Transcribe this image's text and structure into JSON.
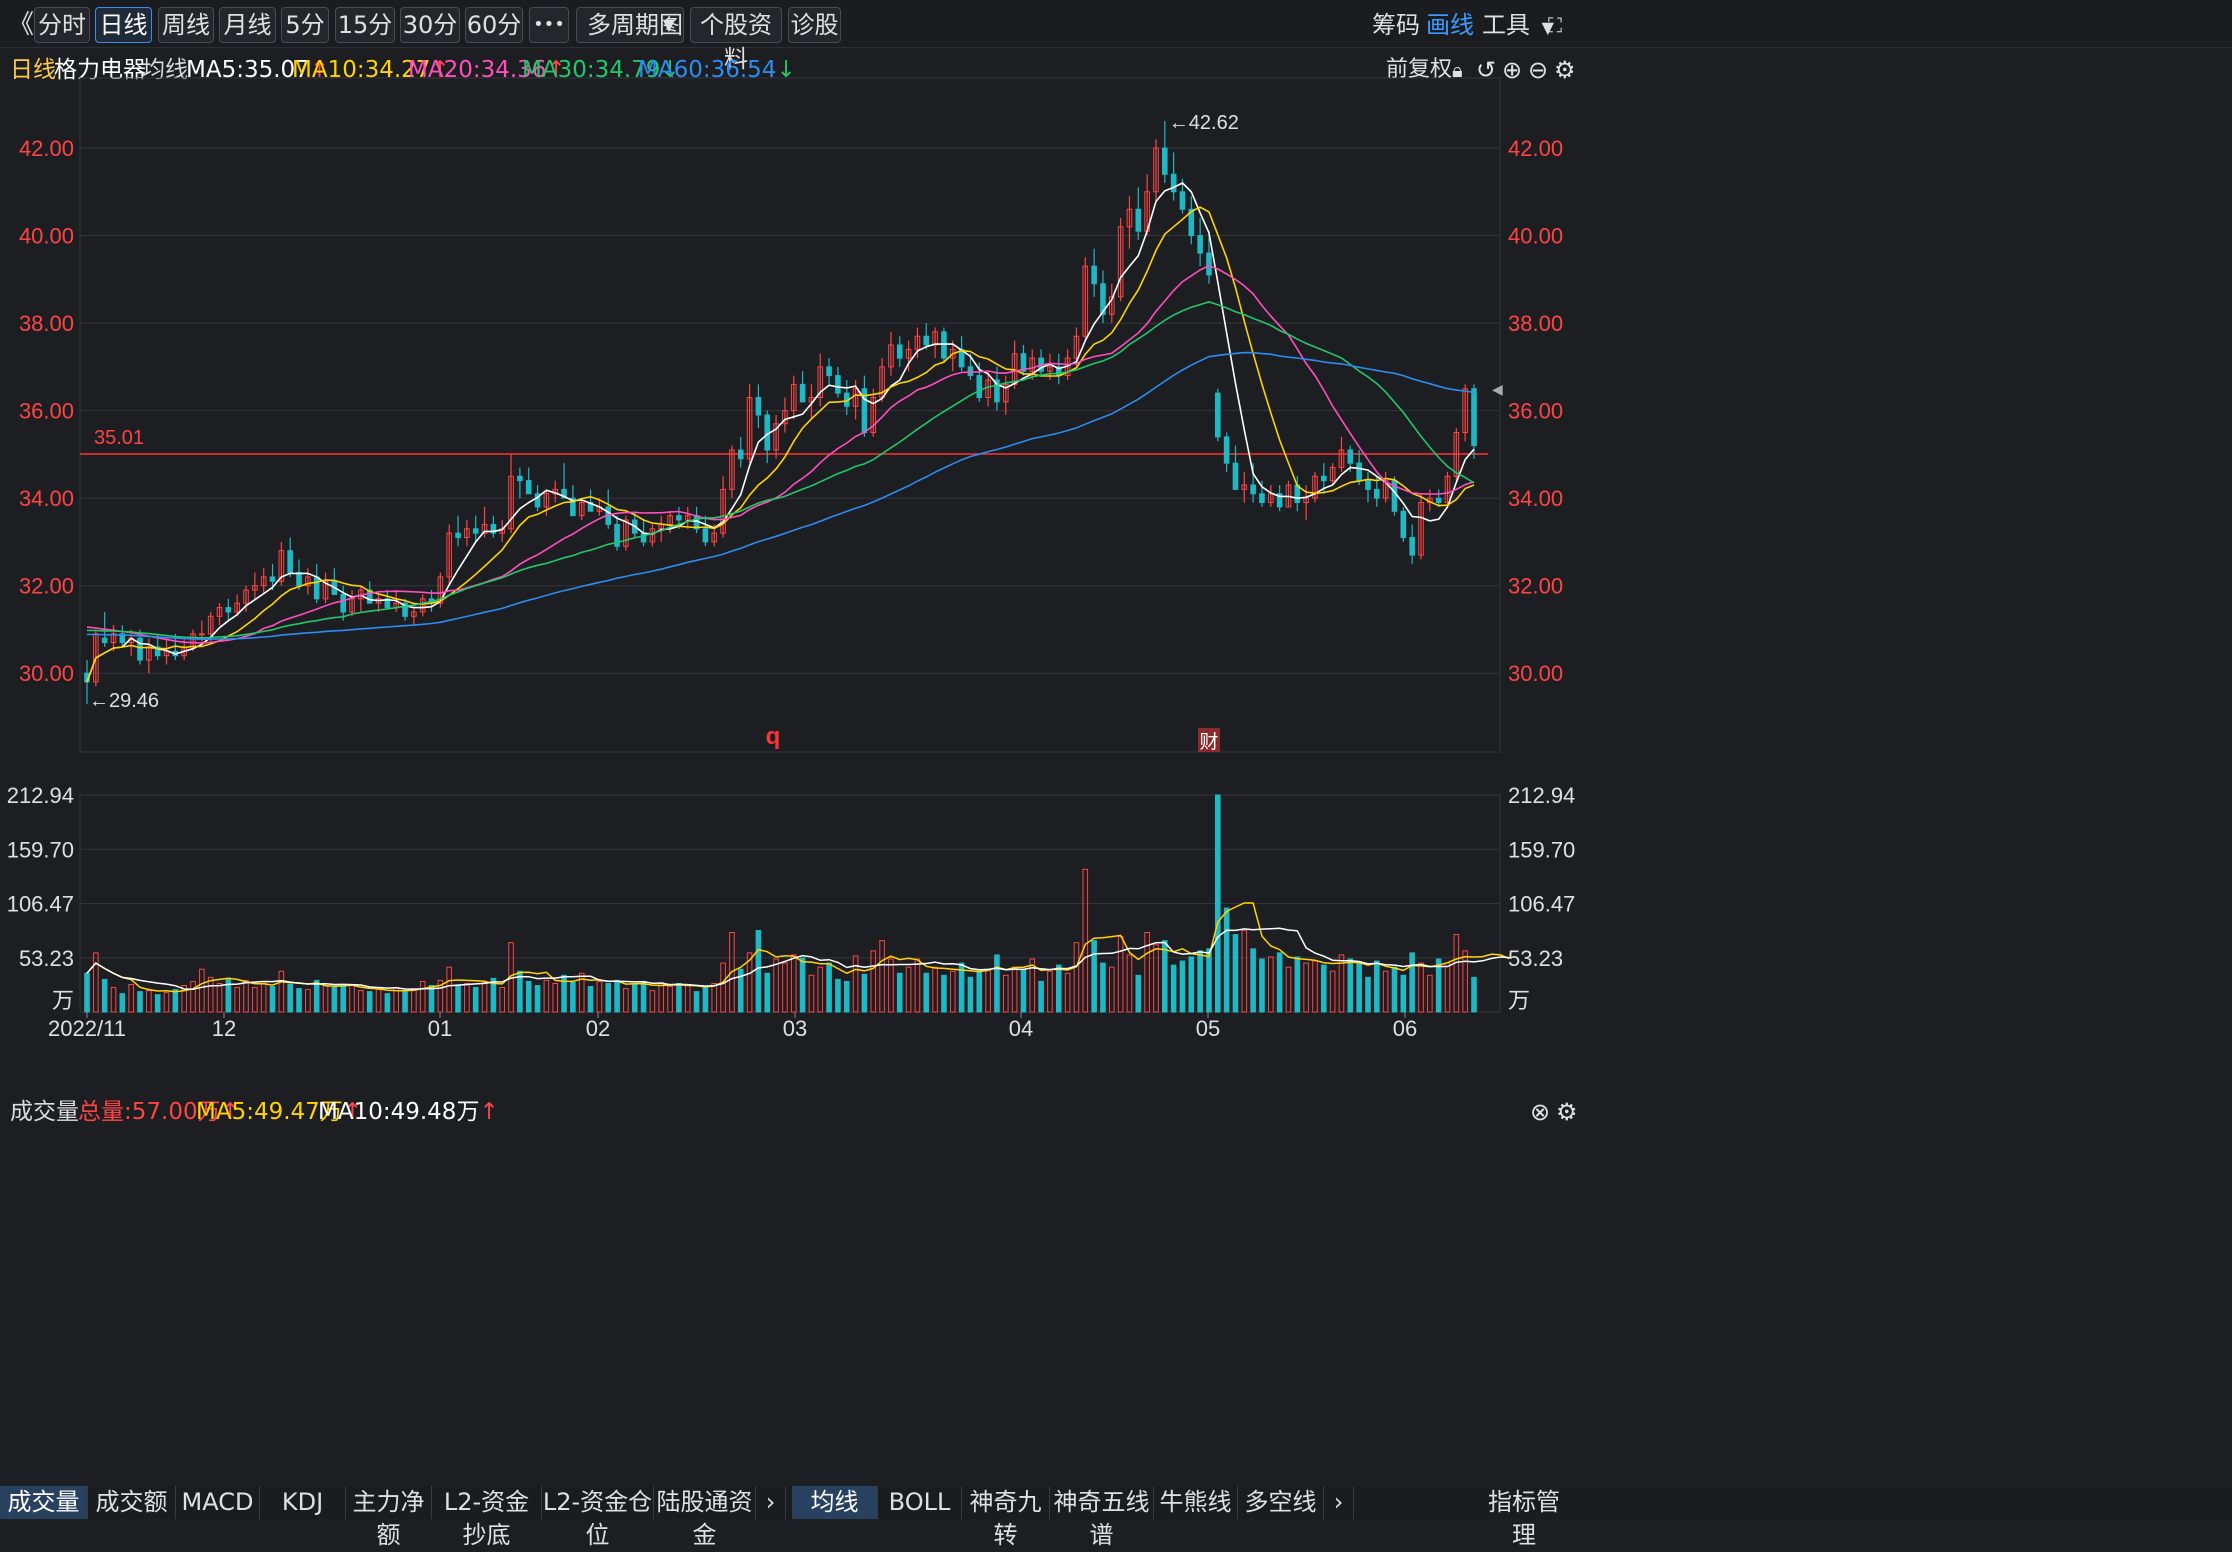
{
  "toolbar": {
    "collapse": "《",
    "periods": [
      "分时",
      "日线",
      "周线",
      "月线",
      "5分",
      "15分",
      "30分",
      "60分"
    ],
    "active_period": "日线",
    "more": "•••",
    "multi_period": "多周期图",
    "profile": "个股资料",
    "diagnose": "诊股",
    "right": {
      "chip": "筹码",
      "draw": "画线",
      "tools": "工具"
    }
  },
  "legend": {
    "period": "日线",
    "stock": "格力电器",
    "ma_label": "均线",
    "ma5": "MA5:35.07",
    "ma10": "MA10:34.27",
    "ma20": "MA20:34.36",
    "ma30": "MA30:34.79",
    "ma60": "MA60:36.54",
    "adjust": "前复权"
  },
  "volume_legend": {
    "title": "成交量",
    "total": "总量:57.00万",
    "ma5": "MA5:49.47万",
    "ma10": "MA10:49.48万"
  },
  "colors": {
    "up": "#ff4444",
    "down": "#1fb8c4",
    "ma5": "#ffffff",
    "ma10": "#ffd400",
    "ma20": "#ff4fbf",
    "ma30": "#22c76a",
    "ma60": "#2b8df0",
    "bg": "#1d1e22",
    "grid": "#34353b"
  },
  "chart_data": {
    "type": "candlestick",
    "price_axis": {
      "ticks": [
        "42.00",
        "40.00",
        "38.00",
        "36.00",
        "34.00",
        "32.00",
        "30.00"
      ],
      "range": [
        28.2,
        43.6
      ]
    },
    "volume_axis": {
      "ticks": [
        "212.94",
        "159.70",
        "106.47",
        "53.23",
        "万"
      ],
      "range": [
        0,
        212.94
      ]
    },
    "x_labels": [
      "2022/11",
      "12",
      "01",
      "02",
      "03",
      "04",
      "05",
      "06"
    ],
    "markers": {
      "high": "42.62",
      "low": "29.46",
      "line": "35.01",
      "q": "q",
      "fin": "财"
    },
    "ohlc": [
      [
        30.0,
        30.3,
        29.3,
        29.8
      ],
      [
        29.8,
        31.0,
        29.7,
        30.9
      ],
      [
        30.8,
        31.4,
        30.6,
        30.7
      ],
      [
        30.7,
        31.1,
        30.5,
        30.9
      ],
      [
        30.9,
        31.1,
        30.6,
        30.7
      ],
      [
        30.7,
        31.0,
        30.4,
        30.8
      ],
      [
        30.8,
        31.0,
        30.2,
        30.3
      ],
      [
        30.3,
        30.8,
        30.0,
        30.6
      ],
      [
        30.6,
        30.9,
        30.3,
        30.4
      ],
      [
        30.4,
        30.8,
        30.2,
        30.5
      ],
      [
        30.5,
        30.9,
        30.3,
        30.4
      ],
      [
        30.4,
        30.8,
        30.3,
        30.6
      ],
      [
        30.6,
        31.0,
        30.5,
        30.9
      ],
      [
        30.9,
        31.2,
        30.7,
        30.9
      ],
      [
        30.9,
        31.4,
        30.7,
        31.3
      ],
      [
        31.3,
        31.6,
        31.1,
        31.5
      ],
      [
        31.5,
        31.7,
        31.2,
        31.4
      ],
      [
        31.4,
        31.8,
        31.3,
        31.6
      ],
      [
        31.6,
        32.0,
        31.4,
        31.9
      ],
      [
        31.9,
        32.3,
        31.7,
        32.0
      ],
      [
        32.0,
        32.4,
        31.8,
        32.2
      ],
      [
        32.2,
        32.5,
        31.9,
        32.1
      ],
      [
        32.1,
        33.0,
        32.0,
        32.8
      ],
      [
        32.8,
        33.1,
        32.2,
        32.3
      ],
      [
        32.3,
        32.6,
        31.9,
        32.0
      ],
      [
        32.0,
        32.4,
        31.8,
        32.2
      ],
      [
        32.2,
        32.5,
        31.6,
        31.7
      ],
      [
        31.7,
        32.3,
        31.6,
        32.1
      ],
      [
        32.1,
        32.4,
        31.9,
        31.8
      ],
      [
        31.8,
        32.0,
        31.2,
        31.4
      ],
      [
        31.4,
        31.9,
        31.3,
        31.7
      ],
      [
        31.7,
        32.0,
        31.4,
        31.9
      ],
      [
        31.9,
        32.1,
        31.6,
        31.6
      ],
      [
        31.6,
        31.8,
        31.4,
        31.7
      ],
      [
        31.7,
        31.9,
        31.5,
        31.5
      ],
      [
        31.5,
        31.9,
        31.4,
        31.6
      ],
      [
        31.6,
        31.7,
        31.2,
        31.3
      ],
      [
        31.3,
        31.5,
        31.1,
        31.4
      ],
      [
        31.4,
        31.8,
        31.3,
        31.7
      ],
      [
        31.7,
        31.9,
        31.4,
        31.6
      ],
      [
        31.6,
        32.3,
        31.5,
        32.2
      ],
      [
        32.2,
        33.4,
        32.0,
        33.2
      ],
      [
        33.2,
        33.6,
        32.9,
        33.1
      ],
      [
        33.1,
        33.5,
        32.9,
        33.3
      ],
      [
        33.3,
        33.6,
        33.0,
        33.2
      ],
      [
        33.2,
        33.8,
        33.1,
        33.4
      ],
      [
        33.4,
        33.6,
        33.1,
        33.2
      ],
      [
        33.2,
        33.5,
        33.0,
        33.3
      ],
      [
        33.3,
        35.0,
        33.2,
        34.5
      ],
      [
        34.5,
        34.7,
        34.0,
        34.4
      ],
      [
        34.4,
        34.7,
        34.1,
        34.1
      ],
      [
        34.1,
        34.3,
        33.7,
        33.8
      ],
      [
        33.8,
        34.2,
        33.6,
        34.1
      ],
      [
        34.1,
        34.4,
        33.9,
        34.2
      ],
      [
        34.2,
        34.8,
        34.0,
        34.0
      ],
      [
        34.0,
        34.3,
        33.6,
        33.6
      ],
      [
        33.6,
        34.0,
        33.5,
        33.9
      ],
      [
        33.9,
        34.2,
        33.7,
        33.7
      ],
      [
        33.7,
        34.0,
        33.6,
        33.8
      ],
      [
        33.8,
        34.2,
        33.3,
        33.4
      ],
      [
        33.4,
        33.6,
        32.8,
        32.9
      ],
      [
        32.9,
        33.6,
        32.8,
        33.5
      ],
      [
        33.5,
        33.7,
        33.1,
        33.2
      ],
      [
        33.2,
        33.5,
        32.9,
        33.0
      ],
      [
        33.0,
        33.4,
        32.9,
        33.3
      ],
      [
        33.3,
        33.6,
        33.0,
        33.4
      ],
      [
        33.4,
        33.7,
        33.2,
        33.6
      ],
      [
        33.6,
        33.8,
        33.3,
        33.5
      ],
      [
        33.5,
        33.8,
        33.3,
        33.6
      ],
      [
        33.6,
        33.8,
        33.2,
        33.3
      ],
      [
        33.3,
        33.6,
        32.9,
        33.0
      ],
      [
        33.0,
        33.4,
        32.9,
        33.2
      ],
      [
        33.2,
        34.5,
        33.1,
        34.2
      ],
      [
        34.2,
        35.2,
        34.0,
        35.1
      ],
      [
        35.1,
        35.4,
        34.7,
        34.9
      ],
      [
        34.9,
        36.6,
        34.8,
        36.3
      ],
      [
        36.3,
        36.6,
        35.6,
        35.9
      ],
      [
        35.9,
        36.0,
        34.8,
        35.1
      ],
      [
        35.1,
        35.9,
        34.9,
        35.7
      ],
      [
        35.7,
        36.3,
        35.5,
        36.0
      ],
      [
        36.0,
        36.8,
        35.8,
        36.6
      ],
      [
        36.6,
        36.9,
        36.2,
        36.2
      ],
      [
        36.2,
        36.6,
        35.8,
        36.3
      ],
      [
        36.3,
        37.3,
        36.1,
        37.0
      ],
      [
        37.0,
        37.2,
        36.6,
        36.8
      ],
      [
        36.8,
        37.0,
        36.3,
        36.4
      ],
      [
        36.4,
        36.7,
        35.9,
        36.1
      ],
      [
        36.1,
        36.7,
        35.8,
        36.5
      ],
      [
        36.5,
        36.8,
        35.4,
        35.5
      ],
      [
        35.5,
        36.5,
        35.4,
        36.3
      ],
      [
        36.3,
        37.2,
        36.2,
        37.0
      ],
      [
        37.0,
        37.8,
        36.8,
        37.5
      ],
      [
        37.5,
        37.7,
        37.0,
        37.2
      ],
      [
        37.2,
        37.6,
        36.9,
        37.4
      ],
      [
        37.4,
        37.9,
        37.2,
        37.7
      ],
      [
        37.7,
        38.0,
        37.4,
        37.5
      ],
      [
        37.5,
        37.9,
        37.2,
        37.8
      ],
      [
        37.8,
        37.9,
        37.1,
        37.2
      ],
      [
        37.2,
        37.6,
        36.9,
        37.4
      ],
      [
        37.4,
        37.7,
        36.9,
        37.0
      ],
      [
        37.0,
        37.3,
        36.7,
        36.8
      ],
      [
        36.8,
        37.1,
        36.2,
        36.3
      ],
      [
        36.3,
        36.9,
        36.1,
        36.7
      ],
      [
        36.7,
        37.0,
        36.0,
        36.2
      ],
      [
        36.2,
        36.8,
        35.9,
        36.6
      ],
      [
        36.6,
        37.6,
        36.5,
        37.3
      ],
      [
        37.3,
        37.5,
        36.8,
        36.9
      ],
      [
        36.9,
        37.4,
        36.7,
        37.2
      ],
      [
        37.2,
        37.4,
        36.8,
        36.9
      ],
      [
        36.9,
        37.3,
        36.7,
        37.0
      ],
      [
        37.0,
        37.3,
        36.6,
        36.8
      ],
      [
        36.8,
        37.4,
        36.7,
        37.2
      ],
      [
        37.2,
        37.9,
        37.0,
        37.7
      ],
      [
        37.7,
        39.5,
        37.6,
        39.3
      ],
      [
        39.3,
        39.7,
        38.6,
        38.9
      ],
      [
        38.9,
        39.2,
        38.0,
        38.2
      ],
      [
        38.2,
        38.9,
        38.0,
        38.6
      ],
      [
        38.6,
        40.4,
        38.5,
        40.2
      ],
      [
        40.2,
        40.9,
        39.7,
        40.6
      ],
      [
        40.6,
        41.1,
        39.9,
        40.1
      ],
      [
        40.1,
        41.4,
        40.0,
        41.0
      ],
      [
        41.0,
        42.2,
        40.8,
        42.0
      ],
      [
        42.0,
        42.62,
        41.2,
        41.4
      ],
      [
        41.4,
        41.9,
        40.8,
        41.0
      ],
      [
        41.0,
        41.3,
        40.5,
        40.6
      ],
      [
        40.6,
        40.9,
        39.8,
        40.0
      ],
      [
        40.0,
        40.4,
        39.3,
        39.6
      ],
      [
        39.6,
        40.1,
        38.9,
        39.1
      ],
      [
        36.4,
        36.5,
        35.3,
        35.4
      ],
      [
        35.4,
        35.5,
        34.6,
        34.8
      ],
      [
        34.8,
        35.2,
        34.2,
        34.2
      ],
      [
        34.2,
        34.6,
        33.9,
        34.3
      ],
      [
        34.3,
        34.8,
        33.9,
        34.1
      ],
      [
        34.1,
        34.4,
        33.8,
        33.9
      ],
      [
        33.9,
        34.3,
        33.8,
        34.1
      ],
      [
        34.1,
        34.3,
        33.7,
        33.8
      ],
      [
        33.8,
        34.4,
        33.8,
        34.3
      ],
      [
        34.3,
        34.5,
        33.7,
        33.9
      ],
      [
        33.9,
        34.3,
        33.5,
        34.0
      ],
      [
        34.0,
        34.6,
        33.9,
        34.5
      ],
      [
        34.5,
        34.8,
        34.1,
        34.4
      ],
      [
        34.4,
        34.8,
        34.3,
        34.7
      ],
      [
        34.7,
        35.4,
        34.6,
        35.1
      ],
      [
        35.1,
        35.2,
        34.6,
        34.8
      ],
      [
        34.8,
        35.1,
        34.3,
        34.4
      ],
      [
        34.4,
        34.6,
        33.9,
        34.2
      ],
      [
        34.2,
        34.5,
        33.8,
        34.0
      ],
      [
        34.0,
        34.6,
        33.9,
        34.4
      ],
      [
        34.4,
        34.5,
        33.6,
        33.7
      ],
      [
        33.7,
        33.8,
        33.0,
        33.1
      ],
      [
        33.1,
        33.4,
        32.5,
        32.7
      ],
      [
        32.7,
        34.1,
        32.6,
        33.9
      ],
      [
        33.9,
        34.2,
        33.7,
        34.0
      ],
      [
        34.0,
        34.2,
        33.8,
        33.9
      ],
      [
        33.9,
        34.6,
        33.8,
        34.5
      ],
      [
        34.5,
        35.6,
        34.4,
        35.5
      ],
      [
        35.5,
        36.6,
        35.3,
        36.5
      ],
      [
        36.5,
        36.6,
        34.9,
        35.2
      ]
    ],
    "volume": [
      38,
      58,
      32,
      24,
      18,
      27,
      20,
      21,
      17,
      19,
      22,
      26,
      30,
      42,
      34,
      28,
      32,
      24,
      31,
      24,
      28,
      25,
      40,
      27,
      23,
      22,
      31,
      26,
      24,
      25,
      26,
      21,
      20,
      22,
      18,
      24,
      20,
      23,
      30,
      26,
      31,
      44,
      26,
      28,
      24,
      29,
      33,
      24,
      68,
      40,
      30,
      26,
      31,
      28,
      36,
      29,
      38,
      25,
      30,
      28,
      31,
      23,
      27,
      30,
      21,
      29,
      25,
      28,
      27,
      20,
      24,
      28,
      48,
      78,
      42,
      58,
      80,
      38,
      52,
      48,
      56,
      53,
      36,
      44,
      48,
      32,
      30,
      55,
      37,
      60,
      70,
      52,
      38,
      44,
      52,
      38,
      44,
      36,
      40,
      48,
      34,
      40,
      42,
      56,
      36,
      44,
      42,
      52,
      30,
      40,
      46,
      38,
      68,
      140,
      70,
      48,
      44,
      74,
      56,
      36,
      78,
      66,
      70,
      46,
      50,
      54,
      60,
      62,
      215,
      102,
      76,
      80,
      62,
      52,
      54,
      58,
      44,
      54,
      48,
      50,
      46,
      40,
      56,
      52,
      48,
      34,
      50,
      40,
      44,
      36,
      58,
      48,
      36,
      52,
      48,
      76,
      60,
      34,
      54,
      60,
      72,
      42
    ]
  }
}
